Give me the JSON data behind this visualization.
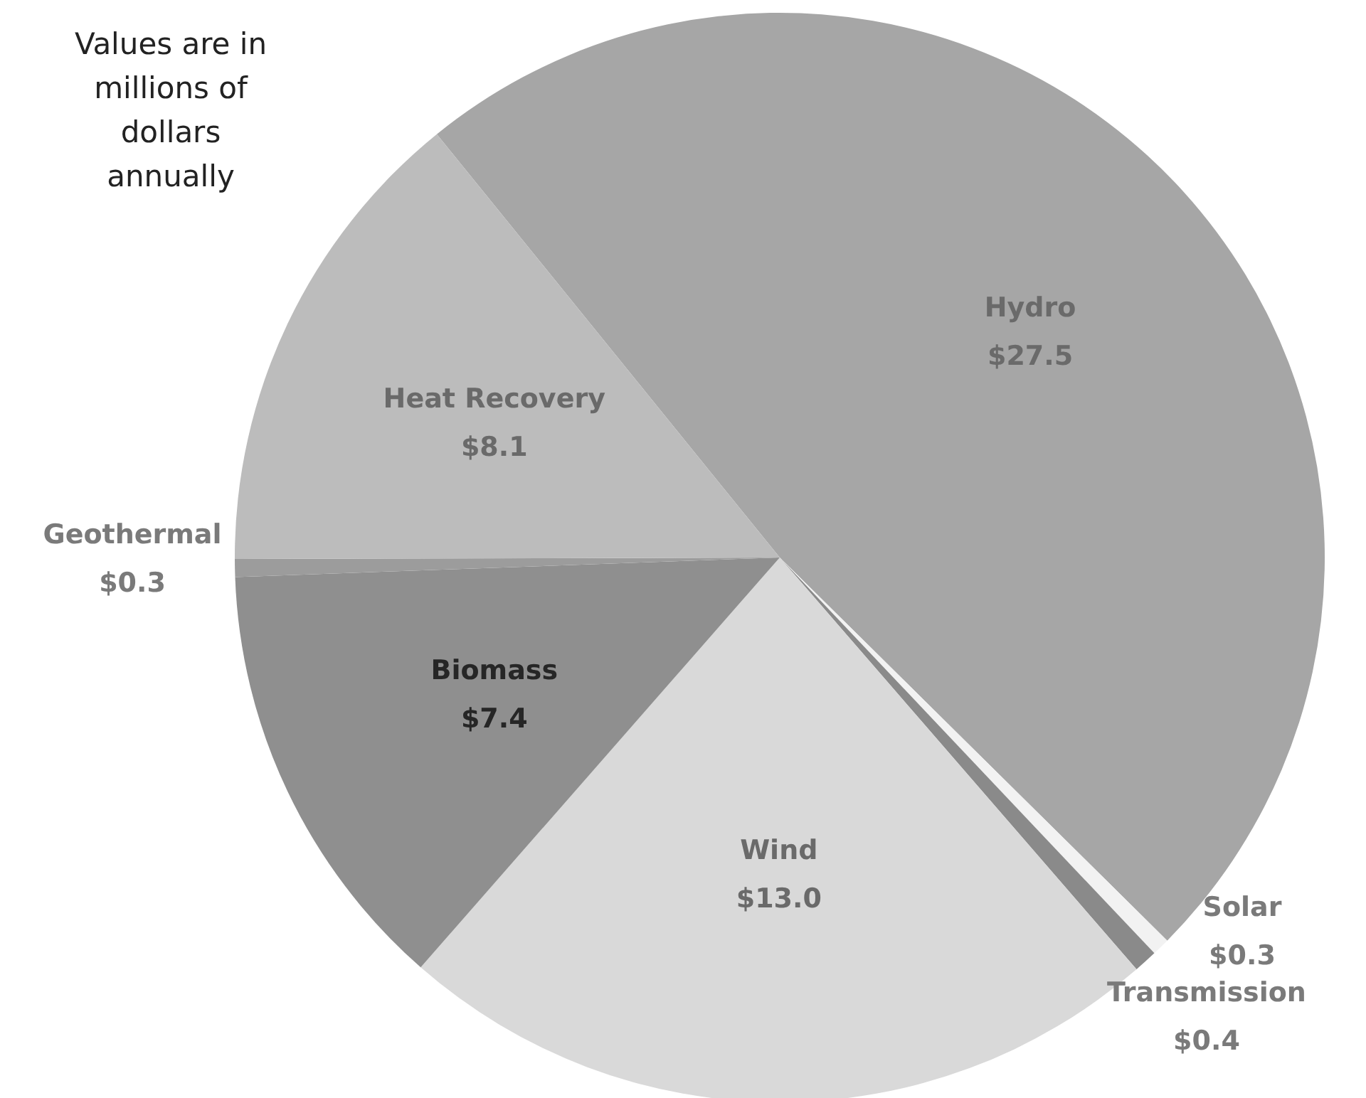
{
  "chart_data": {
    "type": "pie",
    "categories": [
      "Hydro",
      "Solar",
      "Transmission",
      "Wind",
      "Biomass",
      "Geothermal",
      "Heat Recovery"
    ],
    "values": [
      27.5,
      0.3,
      0.4,
      13.0,
      7.4,
      0.3,
      8.1
    ],
    "value_labels": [
      "$27.5",
      "$0.3",
      "$0.4",
      "$13.0",
      "$7.4",
      "$0.3",
      "$8.1"
    ],
    "colors": [
      "#a6a6a6",
      "#f2f2f2",
      "#8a8a8a",
      "#d9d9d9",
      "#8f8f8f",
      "#9c9c9c",
      "#bcbcbc"
    ],
    "annotations": [
      "Values are in millions of dollars annually"
    ]
  }
}
